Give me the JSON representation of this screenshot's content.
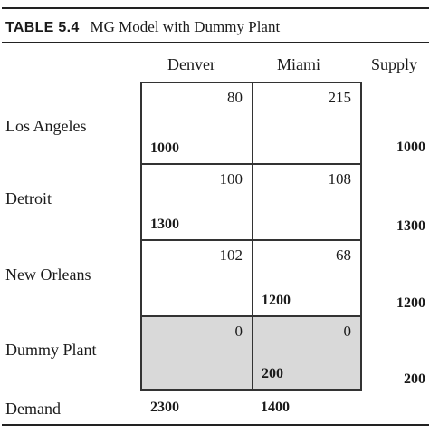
{
  "table": {
    "label": "TABLE 5.4",
    "title": "MG Model with Dummy Plant",
    "columns": [
      "Denver",
      "Miami"
    ],
    "supply_header": "Supply",
    "demand_label": "Demand",
    "rows": [
      {
        "name": "Los Angeles",
        "costs": [
          "80",
          "215"
        ],
        "allocations": [
          "1000",
          ""
        ],
        "supply": "1000",
        "shaded": false
      },
      {
        "name": "Detroit",
        "costs": [
          "100",
          "108"
        ],
        "allocations": [
          "1300",
          ""
        ],
        "supply": "1300",
        "shaded": false
      },
      {
        "name": "New Orleans",
        "costs": [
          "102",
          "68"
        ],
        "allocations": [
          "",
          "1200"
        ],
        "supply": "1200",
        "shaded": false
      },
      {
        "name": "Dummy Plant",
        "costs": [
          "0",
          "0"
        ],
        "allocations": [
          "",
          "200"
        ],
        "supply": "200",
        "shaded": true
      }
    ],
    "demand": [
      "2300",
      "1400"
    ],
    "colors": {
      "text": "#1a1a1a",
      "rule": "#222222",
      "grid_border": "#333333",
      "shaded_fill": "#d9d9d9"
    }
  }
}
